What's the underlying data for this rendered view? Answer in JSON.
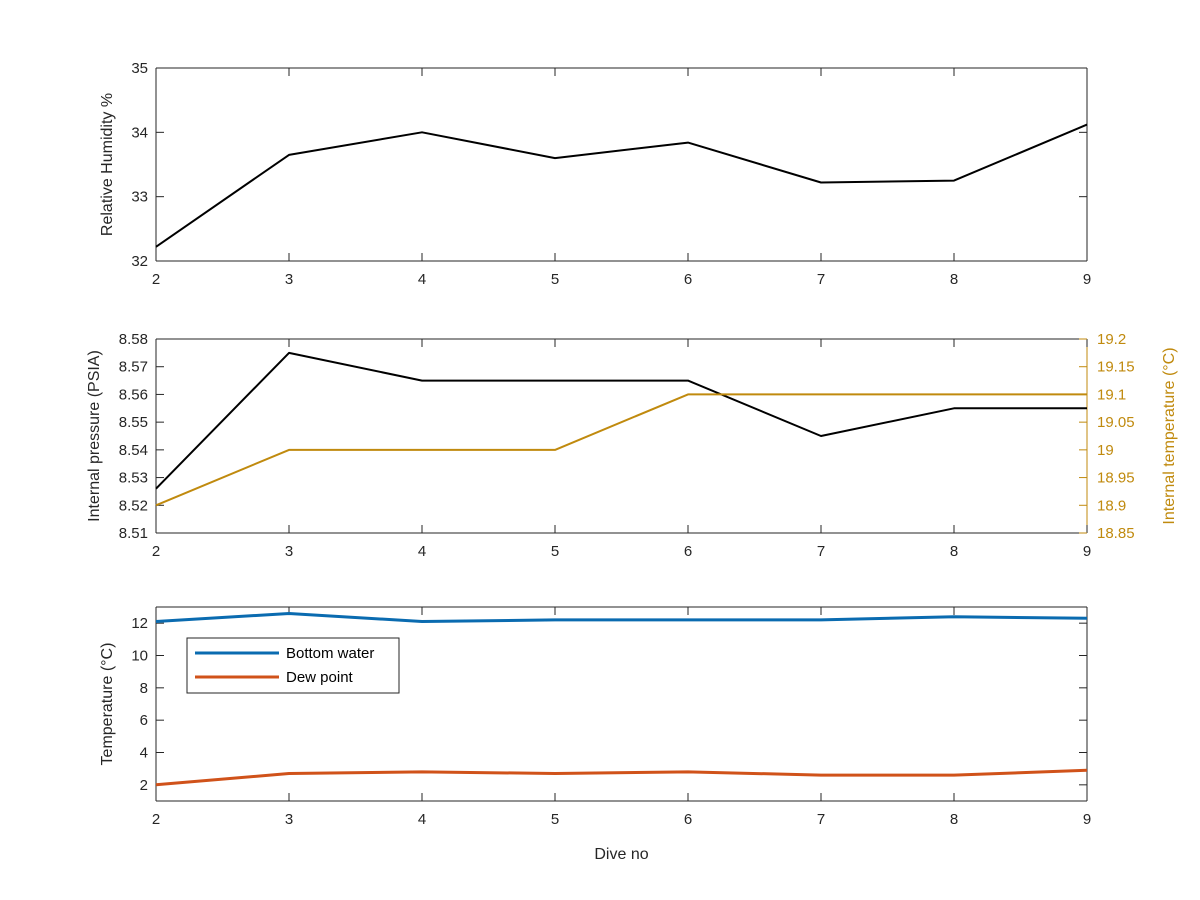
{
  "colors": {
    "black": "#000000",
    "axis": "#262626",
    "gold": "#C08A0E",
    "blue": "#0A6BB0",
    "orange": "#D0521A"
  },
  "chart_data": [
    {
      "type": "line",
      "x": [
        2,
        3,
        4,
        5,
        6,
        7,
        8,
        9
      ],
      "xlim": [
        2,
        9
      ],
      "xticks": [
        "2",
        "3",
        "4",
        "5",
        "6",
        "7",
        "8",
        "9"
      ],
      "ylabel": "Relative Humidity %",
      "ylim": [
        32,
        35
      ],
      "yticks": [
        "32",
        "33",
        "34",
        "35"
      ],
      "series": [
        {
          "color": "#000000",
          "values": [
            32.22,
            33.65,
            34.0,
            33.6,
            33.84,
            33.22,
            33.25,
            34.12
          ]
        }
      ]
    },
    {
      "type": "line",
      "x": [
        2,
        3,
        4,
        5,
        6,
        7,
        8,
        9
      ],
      "xlim": [
        2,
        9
      ],
      "xticks": [
        "2",
        "3",
        "4",
        "5",
        "6",
        "7",
        "8",
        "9"
      ],
      "ylabel": "Internal pressure (PSIA)",
      "ylim": [
        8.51,
        8.58
      ],
      "yticks": [
        "8.51",
        "8.52",
        "8.53",
        "8.54",
        "8.55",
        "8.56",
        "8.57",
        "8.58"
      ],
      "y2label": "Internal temperature (°C)",
      "y2lim": [
        18.85,
        19.2
      ],
      "y2ticks": [
        "18.85",
        "18.9",
        "18.95",
        "19",
        "19.05",
        "19.1",
        "19.15",
        "19.2"
      ],
      "series": [
        {
          "color": "#000000",
          "axis": "left",
          "values": [
            8.526,
            8.575,
            8.565,
            8.565,
            8.565,
            8.545,
            8.555,
            8.555
          ]
        },
        {
          "color": "#C08A0E",
          "axis": "right",
          "values": [
            18.9,
            19.0,
            19.0,
            19.0,
            19.1,
            19.1,
            19.1,
            19.1
          ]
        }
      ]
    },
    {
      "type": "line",
      "x": [
        2,
        3,
        4,
        5,
        6,
        7,
        8,
        9
      ],
      "xlim": [
        2,
        9
      ],
      "xticks": [
        "2",
        "3",
        "4",
        "5",
        "6",
        "7",
        "8",
        "9"
      ],
      "xlabel": "Dive no",
      "ylabel": "Temperature (°C)",
      "ylim": [
        1,
        13
      ],
      "yticks": [
        "2",
        "4",
        "6",
        "8",
        "10",
        "12"
      ],
      "legend_position": "top-left",
      "series": [
        {
          "name": "Bottom water",
          "color": "#0A6BB0",
          "values": [
            12.1,
            12.6,
            12.1,
            12.2,
            12.2,
            12.2,
            12.4,
            12.3
          ]
        },
        {
          "name": "Dew point",
          "color": "#D0521A",
          "values": [
            2.0,
            2.7,
            2.8,
            2.7,
            2.8,
            2.6,
            2.6,
            2.9
          ]
        }
      ]
    }
  ]
}
